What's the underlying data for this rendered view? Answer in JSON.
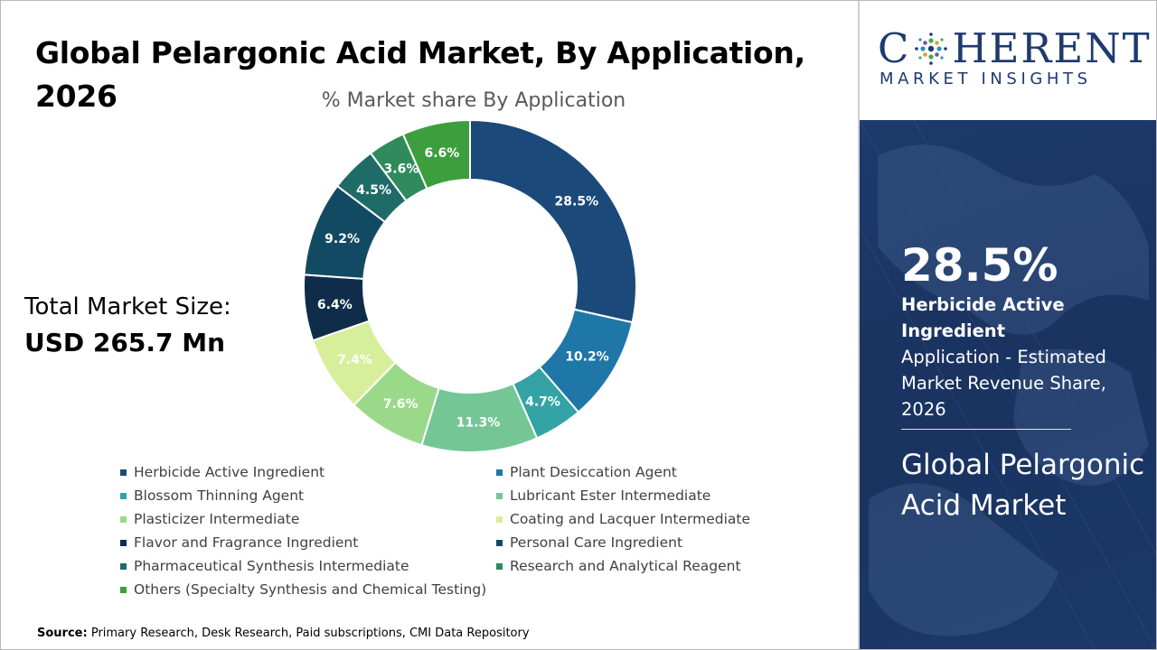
{
  "header": {
    "title_line1": "Global Pelargonic Acid Market, By Application,",
    "title_line2": "2026"
  },
  "total": {
    "label": "Total Market Size:",
    "value": "USD 265.7 Mn"
  },
  "source": {
    "label": "Source:",
    "text": "Primary Research, Desk Research, Paid subscriptions, CMI Data Repository"
  },
  "logo": {
    "main_left": "C",
    "main_right": "HERENT",
    "sub": "MARKET INSIGHTS"
  },
  "highlight": {
    "value": "28.5%",
    "segment": "Herbicide Active Ingredient",
    "description": "Application - Estimated Market Revenue Share, 2026",
    "market": "Global Pelargonic Acid Market"
  },
  "colors": {
    "panel_bg": "#1d3a6c",
    "brand": "#1e3a6e"
  },
  "chart_data": {
    "type": "pie",
    "title": "% Market share By Application",
    "unit": "%",
    "categories": [
      "Herbicide Active Ingredient",
      "Plant Desiccation Agent",
      "Blossom Thinning Agent",
      "Lubricant Ester Intermediate",
      "Plasticizer Intermediate",
      "Coating and Lacquer Intermediate",
      "Flavor and Fragrance Ingredient",
      "Personal Care Ingredient",
      "Pharmaceutical Synthesis Intermediate",
      "Research and Analytical Reagent",
      "Others (Specialty Synthesis and Chemical Testing)"
    ],
    "values": [
      28.5,
      10.2,
      4.7,
      11.3,
      7.6,
      7.4,
      6.4,
      9.2,
      4.5,
      3.6,
      6.6
    ],
    "labels": [
      "28.5%",
      "10.2%",
      "4.7%",
      "11.3%",
      "7.6%",
      "7.4%",
      "6.4%",
      "9.2%",
      "4.5%",
      "3.6%",
      "6.6%"
    ],
    "colors": [
      "#1b4a7a",
      "#1f77a8",
      "#34a3a5",
      "#74c795",
      "#9ad98a",
      "#d7ef9a",
      "#0f2d4a",
      "#134a63",
      "#1f6b68",
      "#2f8a5c",
      "#3d9e3e"
    ],
    "label_colors": [
      "#ffffff",
      "#ffffff",
      "#ffffff",
      "#ffffff",
      "#ffffff",
      "#ffffff",
      "#ffffff",
      "#ffffff",
      "#ffffff",
      "#ffffff",
      "#ffffff"
    ],
    "legend_position": "bottom",
    "shape": "donut"
  }
}
